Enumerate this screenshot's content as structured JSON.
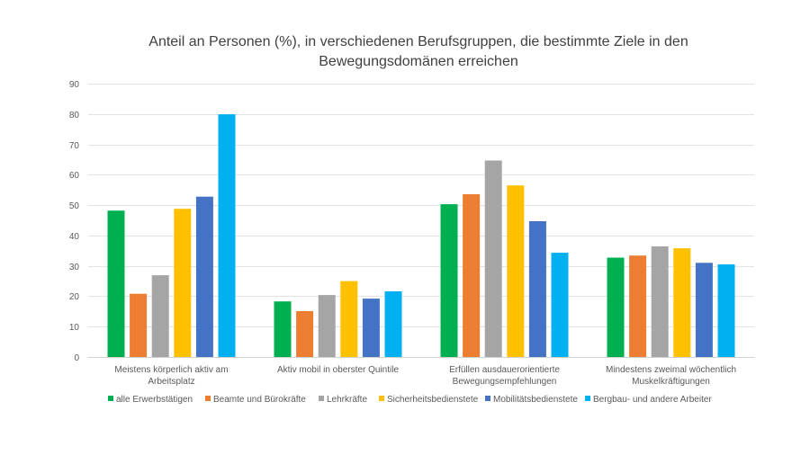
{
  "chart_data": {
    "type": "bar",
    "title": "Anteil an Personen (%), in verschiedenen Berufsgruppen, die bestimmte Ziele in den Bewegungsdomänen erreichen",
    "title_lines": [
      "Anteil an Personen (%), in verschiedenen Berufsgruppen, die bestimmte Ziele in den",
      "Bewegungsdomänen erreichen"
    ],
    "xlabel": "",
    "ylabel": "",
    "ylim": [
      0,
      90
    ],
    "yticks": [
      0,
      10,
      20,
      30,
      40,
      50,
      60,
      70,
      80,
      90
    ],
    "grid": true,
    "legend_position": "bottom",
    "categories": [
      [
        "Meistens körperlich aktiv am",
        "Arbeitsplatz"
      ],
      [
        "Aktiv mobil in oberster Quintile"
      ],
      [
        "Erfüllen ausdauerorientierte",
        "Bewegungsempfehlungen"
      ],
      [
        "Mindestens zweimal wöchentlich",
        "Muskelkräftigungen"
      ]
    ],
    "series": [
      {
        "name": "alle Erwerbstätigen",
        "color": "#00B050",
        "values": [
          48.2,
          18.3,
          50.3,
          32.7
        ]
      },
      {
        "name": "Beamte und Bürokräfte",
        "color": "#ED7D31",
        "values": [
          20.8,
          15.1,
          53.6,
          33.4
        ]
      },
      {
        "name": "Lehrkräfte",
        "color": "#A5A5A5",
        "values": [
          26.9,
          20.4,
          64.7,
          36.4
        ]
      },
      {
        "name": "Sicherheitsbedienstete",
        "color": "#FFC000",
        "values": [
          48.8,
          25.0,
          56.5,
          35.8
        ]
      },
      {
        "name": "Mobilitätsbedienstete",
        "color": "#4472C4",
        "values": [
          52.8,
          19.2,
          44.7,
          31.0
        ]
      },
      {
        "name": "Bergbau- und andere Arbeiter",
        "color": "#00B0F0",
        "values": [
          79.9,
          21.6,
          34.3,
          30.5
        ]
      }
    ]
  }
}
